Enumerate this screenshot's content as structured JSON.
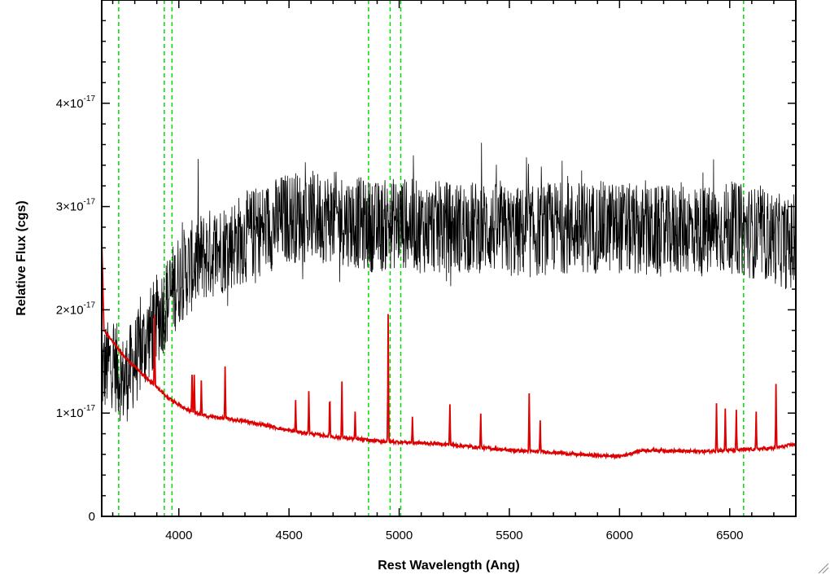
{
  "chart_data": {
    "type": "line",
    "title": "",
    "xlabel": "Rest Wavelength (Ang)",
    "ylabel": "Relative Flux (cgs)",
    "xlim": [
      3650,
      6800
    ],
    "ylim": [
      0,
      5e-17
    ],
    "x_ticks": [
      4000,
      4500,
      5000,
      5500,
      6000,
      6500
    ],
    "x_tick_labels": [
      "4000",
      "4500",
      "5000",
      "5500",
      "6000",
      "6500"
    ],
    "y_ticks": [
      0,
      1e-17,
      2e-17,
      3e-17,
      4e-17
    ],
    "y_tick_labels": [
      {
        "mantissa": "0",
        "exponent": ""
      },
      {
        "mantissa": "1×10",
        "exponent": "-17"
      },
      {
        "mantissa": "2×10",
        "exponent": "-17"
      },
      {
        "mantissa": "3×10",
        "exponent": "-17"
      },
      {
        "mantissa": "4×10",
        "exponent": "-17"
      }
    ],
    "grid": false,
    "legend": "none",
    "series": [
      {
        "color": "#000000",
        "style": "noisy",
        "x": [
          3650,
          3700,
          3750,
          3800,
          3850,
          3900,
          3950,
          4000,
          4100,
          4200,
          4300,
          4400,
          4500,
          4600,
          4700,
          4800,
          4900,
          5000,
          5100,
          5200,
          5300,
          5400,
          5500,
          5600,
          5700,
          5800,
          5900,
          6000,
          6100,
          6200,
          6300,
          6400,
          6500,
          6600,
          6700,
          6800
        ],
        "y": [
          1.4e-17,
          1.5e-17,
          1.3e-17,
          1.5e-17,
          1.7e-17,
          1.9e-17,
          2.1e-17,
          2.3e-17,
          2.5e-17,
          2.6e-17,
          2.7e-17,
          2.8e-17,
          2.9e-17,
          2.9e-17,
          2.9e-17,
          2.85e-17,
          2.8e-17,
          2.85e-17,
          2.8e-17,
          2.8e-17,
          2.8e-17,
          2.8e-17,
          2.75e-17,
          2.75e-17,
          2.8e-17,
          2.8e-17,
          2.8e-17,
          2.8e-17,
          2.75e-17,
          2.75e-17,
          2.8e-17,
          2.75e-17,
          2.8e-17,
          2.75e-17,
          2.7e-17,
          2.6e-17
        ],
        "noise_amplitude": 4.5e-18
      },
      {
        "color": "#dd0000",
        "style": "smooth",
        "x": [
          3650,
          3660,
          3700,
          3750,
          3800,
          3850,
          3900,
          3950,
          4000,
          4050,
          4100,
          4200,
          4300,
          4400,
          4500,
          4600,
          4700,
          4800,
          4900,
          5000,
          5100,
          5200,
          5300,
          5400,
          5500,
          5600,
          5700,
          5800,
          5900,
          6000,
          6100,
          6200,
          6300,
          6400,
          6500,
          6600,
          6700,
          6800
        ],
        "y": [
          2.7e-17,
          1.8e-17,
          1.7e-17,
          1.55e-17,
          1.45e-17,
          1.35e-17,
          1.25e-17,
          1.15e-17,
          1.08e-17,
          1.02e-17,
          9.8e-18,
          9.5e-18,
          9.2e-18,
          8.8e-18,
          8.3e-18,
          8e-18,
          7.7e-18,
          7.5e-18,
          7.3e-18,
          7.2e-18,
          7.1e-18,
          7e-18,
          6.8e-18,
          6.6e-18,
          6.4e-18,
          6.3e-18,
          6.2e-18,
          6e-18,
          5.9e-18,
          5.8e-18,
          6.4e-18,
          6.4e-18,
          6.3e-18,
          6.3e-18,
          6.4e-18,
          6.5e-18,
          6.6e-18,
          7e-18
        ],
        "lines": [
          {
            "x": 3890,
            "peak": 1.95e-17
          },
          {
            "x": 4060,
            "peak": 1.38e-17
          },
          {
            "x": 4070,
            "peak": 1.36e-17
          },
          {
            "x": 4102,
            "peak": 1.32e-17
          },
          {
            "x": 4210,
            "peak": 1.45e-17
          },
          {
            "x": 4530,
            "peak": 1.12e-17
          },
          {
            "x": 4590,
            "peak": 1.22e-17
          },
          {
            "x": 4685,
            "peak": 1.2e-17
          },
          {
            "x": 4740,
            "peak": 1.32e-17
          },
          {
            "x": 4800,
            "peak": 1e-17
          },
          {
            "x": 4950,
            "peak": 1.95e-17
          },
          {
            "x": 5060,
            "peak": 9.5e-18
          },
          {
            "x": 5230,
            "peak": 1.1e-17
          },
          {
            "x": 5370,
            "peak": 1e-17
          },
          {
            "x": 5590,
            "peak": 1.18e-17
          },
          {
            "x": 5640,
            "peak": 9.2e-18
          },
          {
            "x": 6440,
            "peak": 1.1e-17
          },
          {
            "x": 6480,
            "peak": 1.05e-17
          },
          {
            "x": 6530,
            "peak": 1.02e-17
          },
          {
            "x": 6620,
            "peak": 1e-17
          },
          {
            "x": 6710,
            "peak": 1.27e-17
          }
        ]
      }
    ],
    "markers": {
      "color": "#00dd00",
      "style": "dashed",
      "x": [
        3727,
        3934,
        3969,
        4861,
        4959,
        5007,
        6563
      ]
    }
  }
}
